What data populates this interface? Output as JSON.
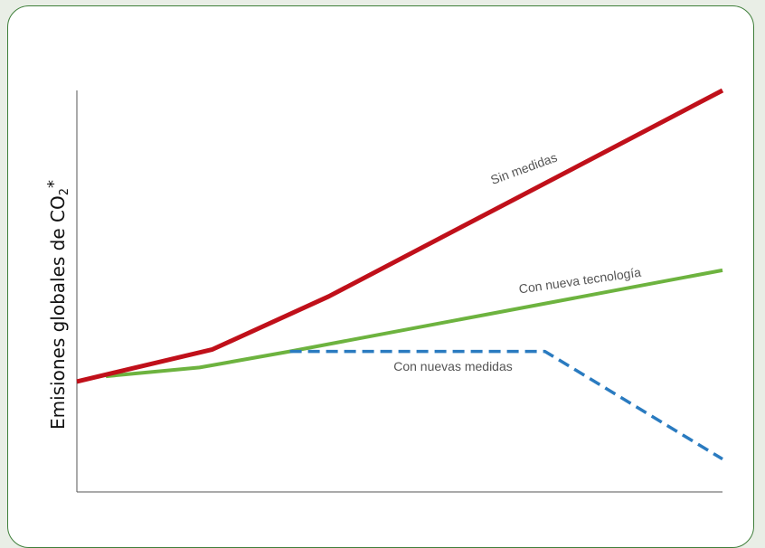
{
  "chart_data": {
    "type": "line",
    "title": "",
    "xlabel": "",
    "ylabel": {
      "main": "Emisiones globales de CO",
      "sub": "2",
      "sup": "*"
    },
    "x_ticks": [],
    "y_ticks": [],
    "xlim": [
      0,
      100
    ],
    "ylim": [
      0,
      100
    ],
    "grid": false,
    "series": [
      {
        "name": "Sin medidas",
        "color": "#c0101a",
        "style": "solid",
        "points": [
          [
            0,
            27.5
          ],
          [
            21,
            35.5
          ],
          [
            39,
            48.7
          ],
          [
            100,
            100
          ]
        ]
      },
      {
        "name": "Con nueva tecnología",
        "color": "#6db33f",
        "style": "solid",
        "points": [
          [
            4.5,
            28.8
          ],
          [
            19,
            31
          ],
          [
            33,
            35
          ],
          [
            100,
            55.2
          ]
        ]
      },
      {
        "name": "Con nuevas medidas",
        "color": "#2a7bc0",
        "style": "dashed",
        "points": [
          [
            33,
            35
          ],
          [
            72.5,
            35
          ],
          [
            100,
            8.2
          ]
        ]
      }
    ]
  }
}
